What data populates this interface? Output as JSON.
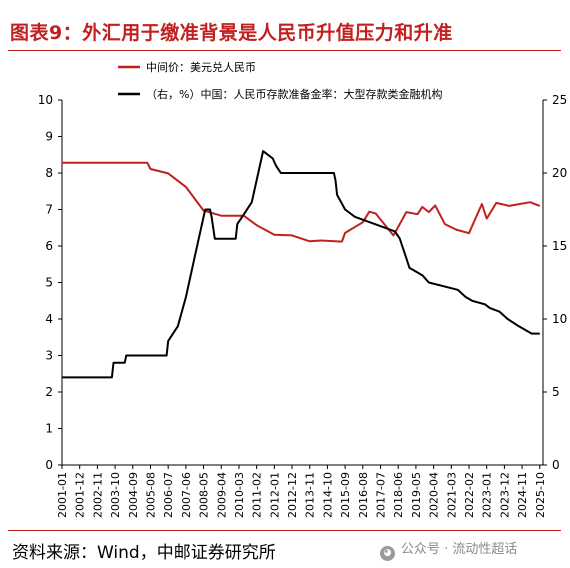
{
  "header": {
    "title": "图表9：外汇用于缴准背景是人民币升值压力和升准"
  },
  "footer": {
    "source": "资料来源：Wind，中邮证券研究所",
    "watermark": "公众号 · 流动性超话",
    "watermark_icon": "wechat-icon"
  },
  "colors": {
    "accent": "#c21f1f",
    "series_red": "#c0201f",
    "series_black": "#000000"
  },
  "chart_data": {
    "type": "line",
    "title": "",
    "xlabel": "",
    "ylabel": "",
    "grid": false,
    "legend_position": "top-left",
    "x_ticks": [
      "2001-01",
      "2001-12",
      "2002-11",
      "2003-10",
      "2004-09",
      "2005-08",
      "2006-07",
      "2007-06",
      "2008-05",
      "2009-04",
      "2010-03",
      "2011-02",
      "2012-01",
      "2012-12",
      "2013-11",
      "2014-10",
      "2015-09",
      "2016-08",
      "2017-07",
      "2018-06",
      "2019-05",
      "2020-04",
      "2021-03",
      "2022-02",
      "2023-01",
      "2023-12",
      "2024-11",
      "2025-10"
    ],
    "left_axis": {
      "ylim": [
        0,
        10
      ],
      "ticks": [
        "0",
        "1",
        "2",
        "3",
        "4",
        "5",
        "6",
        "7",
        "8",
        "9",
        "10"
      ]
    },
    "right_axis": {
      "ylim": [
        0,
        25
      ],
      "ticks": [
        "0",
        "5",
        "10",
        "15",
        "20",
        "25"
      ]
    },
    "series": [
      {
        "name": "中间价：美元兑人民币",
        "axis": "left",
        "color": "#c0201f",
        "points": [
          [
            "2001-01",
            8.28
          ],
          [
            "2005-06",
            8.28
          ],
          [
            "2005-08",
            8.11
          ],
          [
            "2006-07",
            7.99
          ],
          [
            "2007-06",
            7.62
          ],
          [
            "2008-05",
            6.97
          ],
          [
            "2009-04",
            6.83
          ],
          [
            "2010-06",
            6.83
          ],
          [
            "2011-02",
            6.57
          ],
          [
            "2012-01",
            6.31
          ],
          [
            "2012-12",
            6.29
          ],
          [
            "2013-11",
            6.13
          ],
          [
            "2014-06",
            6.15
          ],
          [
            "2015-07",
            6.12
          ],
          [
            "2015-09",
            6.36
          ],
          [
            "2016-08",
            6.65
          ],
          [
            "2016-12",
            6.94
          ],
          [
            "2017-04",
            6.89
          ],
          [
            "2018-03",
            6.29
          ],
          [
            "2018-06",
            6.52
          ],
          [
            "2018-11",
            6.93
          ],
          [
            "2019-06",
            6.87
          ],
          [
            "2019-09",
            7.07
          ],
          [
            "2020-01",
            6.93
          ],
          [
            "2020-05",
            7.11
          ],
          [
            "2020-11",
            6.6
          ],
          [
            "2021-06",
            6.45
          ],
          [
            "2022-02",
            6.35
          ],
          [
            "2022-04",
            6.55
          ],
          [
            "2022-10",
            7.15
          ],
          [
            "2023-01",
            6.75
          ],
          [
            "2023-07",
            7.18
          ],
          [
            "2024-03",
            7.1
          ],
          [
            "2025-04",
            7.2
          ],
          [
            "2025-10",
            7.1
          ]
        ]
      },
      {
        "name": "（右，%）中国：人民币存款准备金率：大型存款类金融机构",
        "axis": "right",
        "color": "#000000",
        "points": [
          [
            "2001-01",
            6
          ],
          [
            "2003-08",
            6
          ],
          [
            "2003-09",
            7
          ],
          [
            "2004-04",
            7
          ],
          [
            "2004-05",
            7.5
          ],
          [
            "2006-06",
            7.5
          ],
          [
            "2006-07",
            8.5
          ],
          [
            "2007-01",
            9.5
          ],
          [
            "2007-06",
            11.5
          ],
          [
            "2007-12",
            14.5
          ],
          [
            "2008-06",
            17.5
          ],
          [
            "2008-09",
            17.5
          ],
          [
            "2008-10",
            17
          ],
          [
            "2008-12",
            15.5
          ],
          [
            "2010-01",
            15.5
          ],
          [
            "2010-02",
            16.5
          ],
          [
            "2010-05",
            17
          ],
          [
            "2010-11",
            18
          ],
          [
            "2011-01",
            19
          ],
          [
            "2011-06",
            21.5
          ],
          [
            "2011-12",
            21
          ],
          [
            "2012-02",
            20.5
          ],
          [
            "2012-05",
            20
          ],
          [
            "2015-02",
            20
          ],
          [
            "2015-03",
            19.5
          ],
          [
            "2015-04",
            18.5
          ],
          [
            "2015-09",
            17.5
          ],
          [
            "2016-03",
            17
          ],
          [
            "2018-04",
            16
          ],
          [
            "2018-07",
            15.5
          ],
          [
            "2018-10",
            14.5
          ],
          [
            "2019-01",
            13.5
          ],
          [
            "2019-09",
            13
          ],
          [
            "2020-01",
            12.5
          ],
          [
            "2021-07",
            12
          ],
          [
            "2021-12",
            11.5
          ],
          [
            "2022-04",
            11.25
          ],
          [
            "2022-12",
            11
          ],
          [
            "2023-03",
            10.75
          ],
          [
            "2023-09",
            10.5
          ],
          [
            "2024-02",
            10
          ],
          [
            "2024-09",
            9.5
          ],
          [
            "2025-05",
            9
          ],
          [
            "2025-10",
            9
          ]
        ]
      }
    ]
  }
}
